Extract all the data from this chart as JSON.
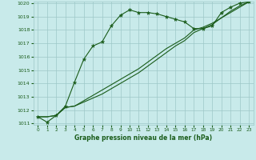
{
  "xlabel": "Graphe pression niveau de la mer (hPa)",
  "hours": [
    0,
    1,
    2,
    3,
    4,
    5,
    6,
    7,
    8,
    9,
    10,
    11,
    12,
    13,
    14,
    15,
    16,
    17,
    18,
    19,
    20,
    21,
    22,
    23
  ],
  "line1": [
    1011.5,
    1011.1,
    1011.6,
    1012.3,
    1014.1,
    1015.8,
    1016.8,
    1017.1,
    1018.3,
    1019.1,
    1019.5,
    1019.3,
    1019.3,
    1019.2,
    1019.0,
    1018.8,
    1018.6,
    1018.1,
    1018.1,
    1018.3,
    1019.3,
    1019.7,
    1020.0,
    1020.1
  ],
  "line2": [
    1011.5,
    1011.5,
    1011.6,
    1012.2,
    1012.3,
    1012.6,
    1012.9,
    1013.2,
    1013.6,
    1014.0,
    1014.4,
    1014.8,
    1015.3,
    1015.8,
    1016.3,
    1016.8,
    1017.2,
    1017.8,
    1018.1,
    1018.4,
    1018.9,
    1019.3,
    1019.7,
    1020.1
  ],
  "line3": [
    1011.5,
    1011.5,
    1011.6,
    1012.2,
    1012.3,
    1012.7,
    1013.1,
    1013.5,
    1013.9,
    1014.3,
    1014.7,
    1015.1,
    1015.6,
    1016.1,
    1016.6,
    1017.0,
    1017.4,
    1018.0,
    1018.2,
    1018.5,
    1018.9,
    1019.4,
    1019.8,
    1020.1
  ],
  "line_color": "#1a5c1a",
  "bg_color": "#c8eaea",
  "grid_color": "#9dc8c8",
  "ylim": [
    1011,
    1020
  ],
  "xlim": [
    -0.5,
    23.5
  ],
  "yticks": [
    1011,
    1012,
    1013,
    1014,
    1015,
    1016,
    1017,
    1018,
    1019,
    1020
  ],
  "xticks": [
    0,
    1,
    2,
    3,
    4,
    5,
    6,
    7,
    8,
    9,
    10,
    11,
    12,
    13,
    14,
    15,
    16,
    17,
    18,
    19,
    20,
    21,
    22,
    23
  ]
}
